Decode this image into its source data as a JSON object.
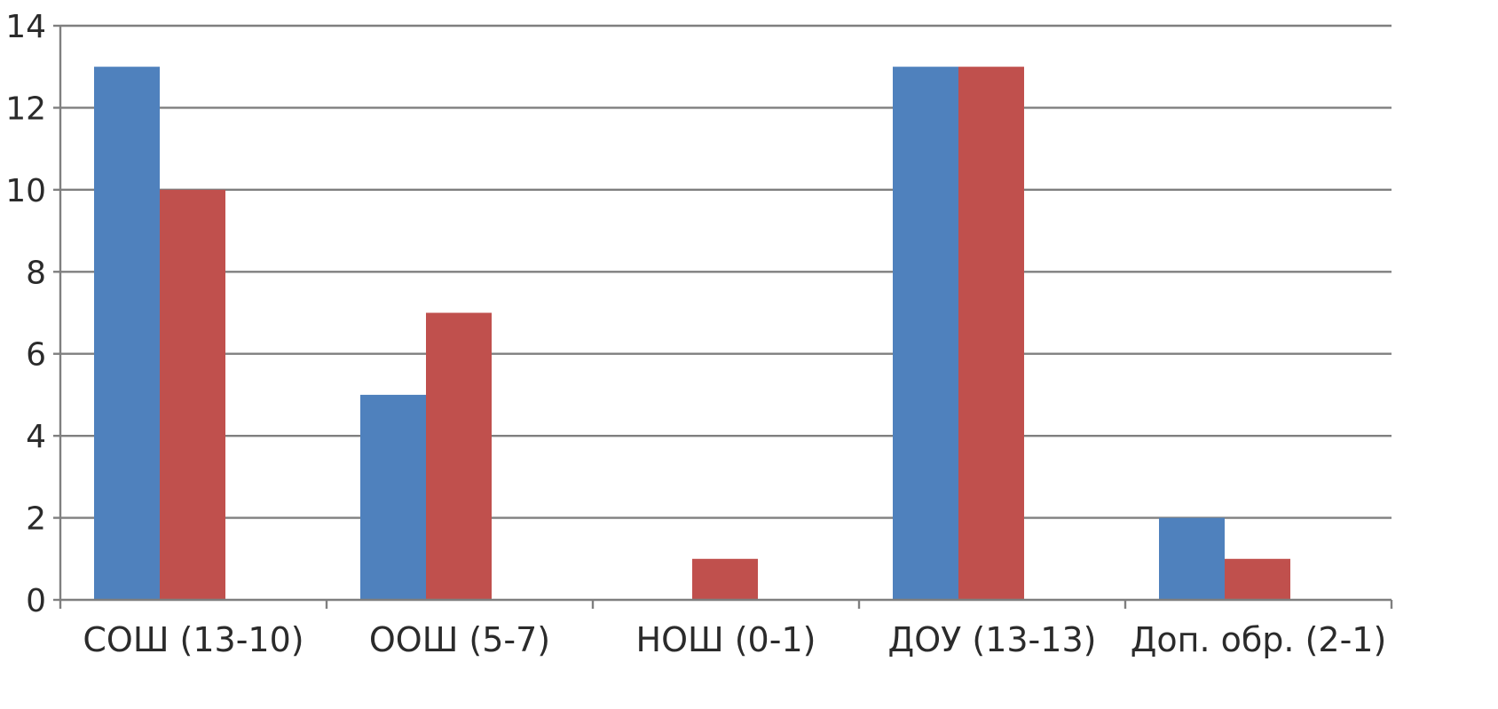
{
  "chart_data": {
    "type": "bar",
    "categories": [
      "СОШ (13-10)",
      "ООШ (5-7)",
      "НОШ (0-1)",
      "ДОУ (13-13)",
      "Доп. обр. (2-1)"
    ],
    "series": [
      {
        "values": [
          13,
          5,
          0,
          13,
          2
        ],
        "color": "#4f81bd"
      },
      {
        "values": [
          10,
          7,
          1,
          13,
          1
        ],
        "color": "#c0504d"
      }
    ],
    "yticks": [
      "0",
      "2",
      "4",
      "6",
      "8",
      "10",
      "12",
      "14"
    ],
    "ylim": [
      0,
      14
    ],
    "grid": true,
    "legend": "none"
  }
}
